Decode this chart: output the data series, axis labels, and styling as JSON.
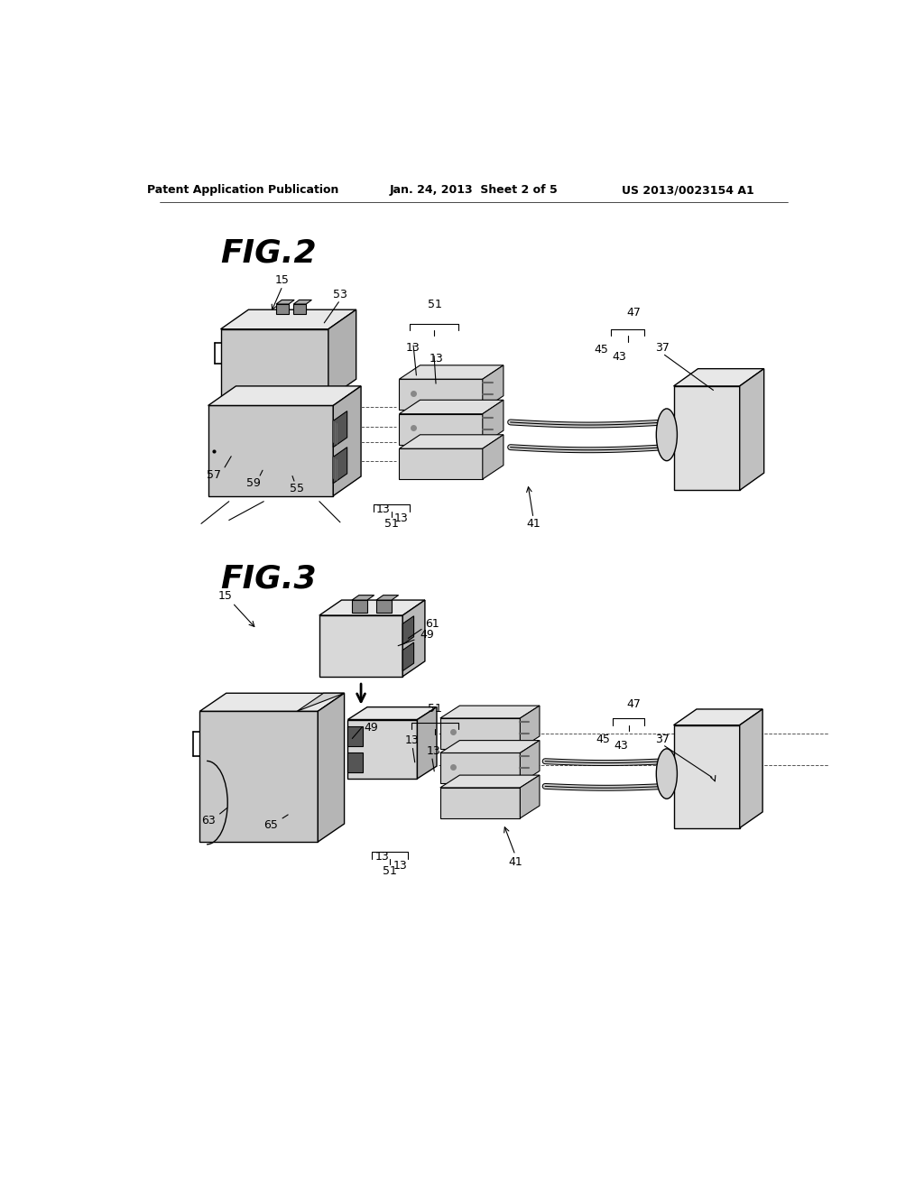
{
  "background_color": "#ffffff",
  "header_left": "Patent Application Publication",
  "header_center": "Jan. 24, 2013  Sheet 2 of 5",
  "header_right": "US 2013/0023154 A1",
  "fig2_label": "FIG.2",
  "fig3_label": "FIG.3",
  "line_color": "#000000",
  "gray_light": "#e8e8e8",
  "gray_mid": "#c8c8c8",
  "gray_dark": "#909090"
}
